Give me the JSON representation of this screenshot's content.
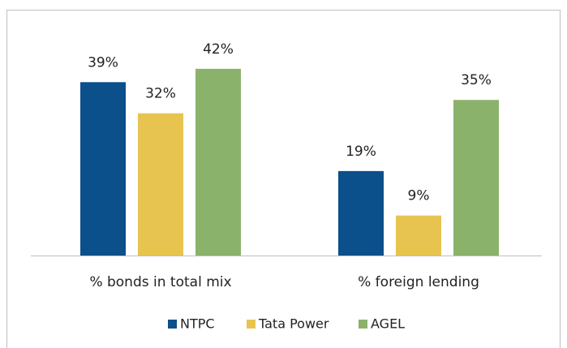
{
  "chart_data": {
    "type": "bar",
    "categories": [
      "% bonds in total mix",
      "% foreign lending"
    ],
    "series": [
      {
        "name": "NTPC",
        "color": "#0b4f8b",
        "values": [
          39,
          19
        ],
        "value_labels": [
          "39%",
          "19%"
        ]
      },
      {
        "name": "Tata Power",
        "color": "#e6c44f",
        "values": [
          32,
          9
        ],
        "value_labels": [
          "32%",
          "9%"
        ]
      },
      {
        "name": "AGEL",
        "color": "#8bb26b",
        "values": [
          42,
          35
        ],
        "value_labels": [
          "42%",
          "35%"
        ]
      }
    ],
    "legend": "bottom"
  }
}
